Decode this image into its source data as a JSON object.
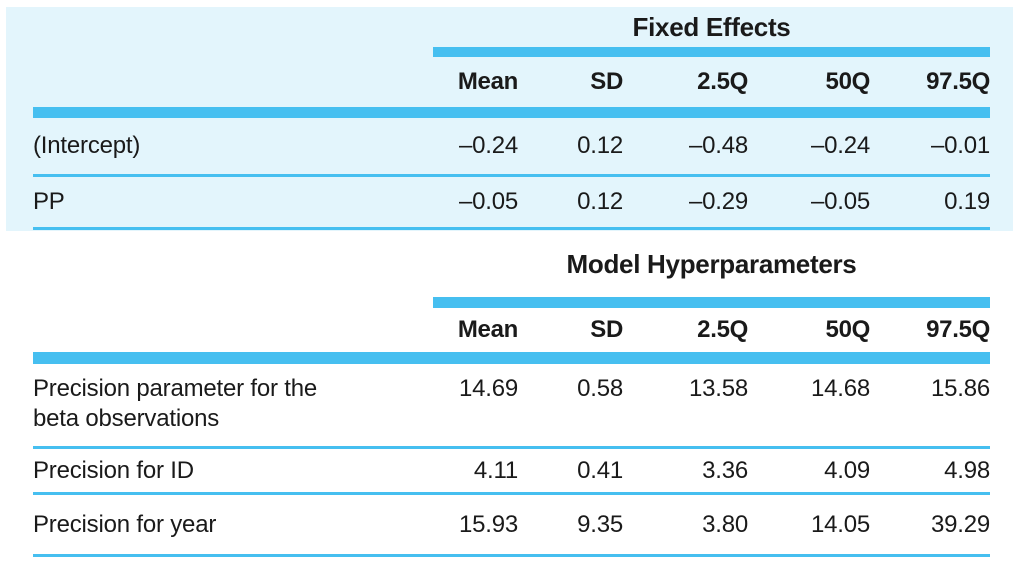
{
  "colors": {
    "accent": "#46bff0",
    "panel_background": "#e3f5fc",
    "text": "#1a1a1a",
    "page_background": "#ffffff"
  },
  "tables": [
    {
      "section_title": "Fixed Effects",
      "columns": [
        "Mean",
        "SD",
        "2.5Q",
        "50Q",
        "97.5Q"
      ],
      "rows": [
        {
          "label": "(Intercept)",
          "values": [
            "–0.24",
            "0.12",
            "–0.48",
            "–0.24",
            "–0.01"
          ]
        },
        {
          "label": "PP",
          "values": [
            "–0.05",
            "0.12",
            "–0.29",
            "–0.05",
            "0.19"
          ]
        }
      ]
    },
    {
      "section_title": "Model Hyperparameters",
      "columns": [
        "Mean",
        "SD",
        "2.5Q",
        "50Q",
        "97.5Q"
      ],
      "rows": [
        {
          "label": "Precision parameter for the beta observations",
          "values": [
            "14.69",
            "0.58",
            "13.58",
            "14.68",
            "15.86"
          ]
        },
        {
          "label": "Precision for ID",
          "values": [
            "4.11",
            "0.41",
            "3.36",
            "4.09",
            "4.98"
          ]
        },
        {
          "label": "Precision for year",
          "values": [
            "15.93",
            "9.35",
            "3.80",
            "14.05",
            "39.29"
          ]
        }
      ]
    }
  ]
}
